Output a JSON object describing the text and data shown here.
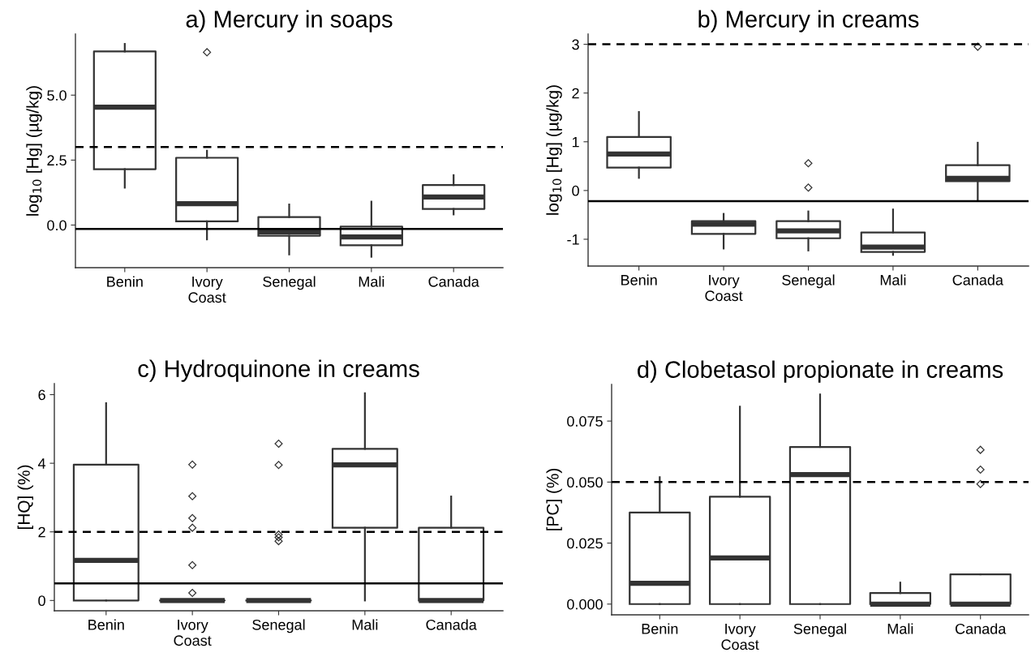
{
  "chart_data": [
    {
      "type": "box",
      "title": "a) Mercury in soaps",
      "ylabel": "log$_{10}$ [Hg] (µg/kg)",
      "categories": [
        "Benin",
        "Ivory\nCoast",
        "Senegal",
        "Mali",
        "Canada"
      ],
      "marker": "diamond",
      "grid": false,
      "boxes": [
        {
          "low": 1.44,
          "q1": 2.15,
          "median": 4.54,
          "q3": 6.68,
          "high": 6.97
        },
        {
          "low": -0.55,
          "q1": 0.14,
          "median": 0.82,
          "q3": 2.59,
          "high": 2.86,
          "outliers": [
            6.65
          ]
        },
        {
          "low": -1.13,
          "q1": -0.41,
          "median": -0.26,
          "q3": 0.31,
          "high": 0.79
        },
        {
          "low": -1.22,
          "q1": -0.78,
          "median": -0.46,
          "q3": -0.06,
          "high": 0.9
        },
        {
          "low": 0.41,
          "q1": 0.62,
          "median": 1.08,
          "q3": 1.54,
          "high": 1.92
        }
      ],
      "ylim": [
        -1.64,
        7.35
      ],
      "yticks": [
        {
          "value": 0,
          "label": "0.0"
        },
        {
          "value": 2.5,
          "label": "2.5"
        },
        {
          "value": 5,
          "label": "5.0"
        }
      ],
      "ref_lines": [
        {
          "axis": "y",
          "value": 3,
          "line_style": "dashed",
          "color": "#000000"
        },
        {
          "axis": "y",
          "value": -0.15,
          "line_style": "solid",
          "color": "#000000"
        }
      ]
    },
    {
      "type": "box",
      "title": "b) Mercury in creams",
      "ylabel": "log$_{10}$ [Hg] (µg/kg)",
      "categories": [
        "Benin",
        "Ivory\nCoast",
        "Senegal",
        "Mali",
        "Canada"
      ],
      "marker": "diamond",
      "grid": false,
      "boxes": [
        {
          "low": 0.26,
          "q1": 0.47,
          "median": 0.75,
          "q3": 1.1,
          "high": 1.61
        },
        {
          "low": -1.19,
          "q1": -0.89,
          "median": -0.69,
          "q3": -0.63,
          "high": -0.48
        },
        {
          "low": -1.23,
          "q1": -0.98,
          "median": -0.83,
          "q3": -0.63,
          "high": -0.43,
          "outliers": [
            0.56,
            0.06
          ]
        },
        {
          "low": -1.32,
          "q1": -1.26,
          "median": -1.16,
          "q3": -0.86,
          "high": -0.39
        },
        {
          "low": -0.19,
          "q1": 0.19,
          "median": 0.25,
          "q3": 0.52,
          "high": 0.98,
          "outliers": [
            2.95
          ]
        }
      ],
      "ylim": [
        -1.55,
        3.21
      ],
      "yticks": [
        -1,
        0,
        1,
        2,
        3
      ],
      "ref_lines": [
        {
          "axis": "y",
          "value": 3,
          "line_style": "dashed",
          "color": "#000000"
        },
        {
          "axis": "y",
          "value": -0.22,
          "line_style": "solid",
          "color": "#000000"
        }
      ]
    },
    {
      "type": "box",
      "title": "c) Hydroquinone in creams",
      "ylabel": "[HQ] (%)",
      "categories": [
        "Benin",
        "Ivory\nCoast",
        "Senegal",
        "Mali",
        "Canada"
      ],
      "marker": "diamond",
      "grid": false,
      "boxes": [
        {
          "low": 0,
          "q1": 0,
          "median": 1.17,
          "q3": 3.96,
          "high": 5.75
        },
        {
          "low": 0,
          "q1": 0,
          "median": 0,
          "q3": 0,
          "high": 0,
          "outliers": [
            3.96,
            3.04,
            2.4,
            2.12,
            1.03,
            0.22
          ]
        },
        {
          "low": 0,
          "q1": 0,
          "median": 0,
          "q3": 0,
          "high": 0,
          "outliers": [
            4.57,
            3.95,
            1.92,
            1.84,
            1.73
          ]
        },
        {
          "low": 0,
          "q1": 2.12,
          "median": 3.95,
          "q3": 4.42,
          "high": 6.04
        },
        {
          "low": 0,
          "q1": 0,
          "median": 0,
          "q3": 2.12,
          "high": 3.03
        }
      ],
      "ylim": [
        -0.3,
        6.32
      ],
      "yticks": [
        0,
        2,
        4,
        6
      ],
      "ref_lines": [
        {
          "axis": "y",
          "value": 2,
          "line_style": "dashed",
          "color": "#000000"
        },
        {
          "axis": "y",
          "value": 0.5,
          "line_style": "solid",
          "color": "#000000"
        }
      ]
    },
    {
      "type": "box",
      "title": "d) Clobetasol propionate in creams",
      "ylabel": "[PC] (%)",
      "categories": [
        "Benin",
        "Ivory\nCoast",
        "Senegal",
        "Mali",
        "Canada"
      ],
      "marker": "diamond",
      "grid": false,
      "boxes": [
        {
          "low": 0,
          "q1": 0,
          "median": 0.0085,
          "q3": 0.0375,
          "high": 0.052
        },
        {
          "low": 0,
          "q1": 0,
          "median": 0.0189,
          "q3": 0.044,
          "high": 0.0809
        },
        {
          "low": 0,
          "q1": 0,
          "median": 0.0531,
          "q3": 0.0644,
          "high": 0.0859
        },
        {
          "low": 0,
          "q1": 0,
          "median": 0,
          "q3": 0.0045,
          "high": 0.0088
        },
        {
          "low": 0,
          "q1": 0,
          "median": 0,
          "q3": 0.0122,
          "high": 0.0122,
          "outliers": [
            0.0632,
            0.0551,
            0.0492
          ]
        }
      ],
      "ylim": [
        -0.0044,
        0.09
      ],
      "yticks": [
        {
          "value": 0,
          "label": "0.000"
        },
        {
          "value": 0.025,
          "label": "0.025"
        },
        {
          "value": 0.05,
          "label": "0.050"
        },
        {
          "value": 0.075,
          "label": "0.075"
        }
      ],
      "ref_lines": [
        {
          "axis": "y",
          "value": 0.05,
          "line_style": "dashed",
          "color": "#000000"
        }
      ]
    }
  ]
}
